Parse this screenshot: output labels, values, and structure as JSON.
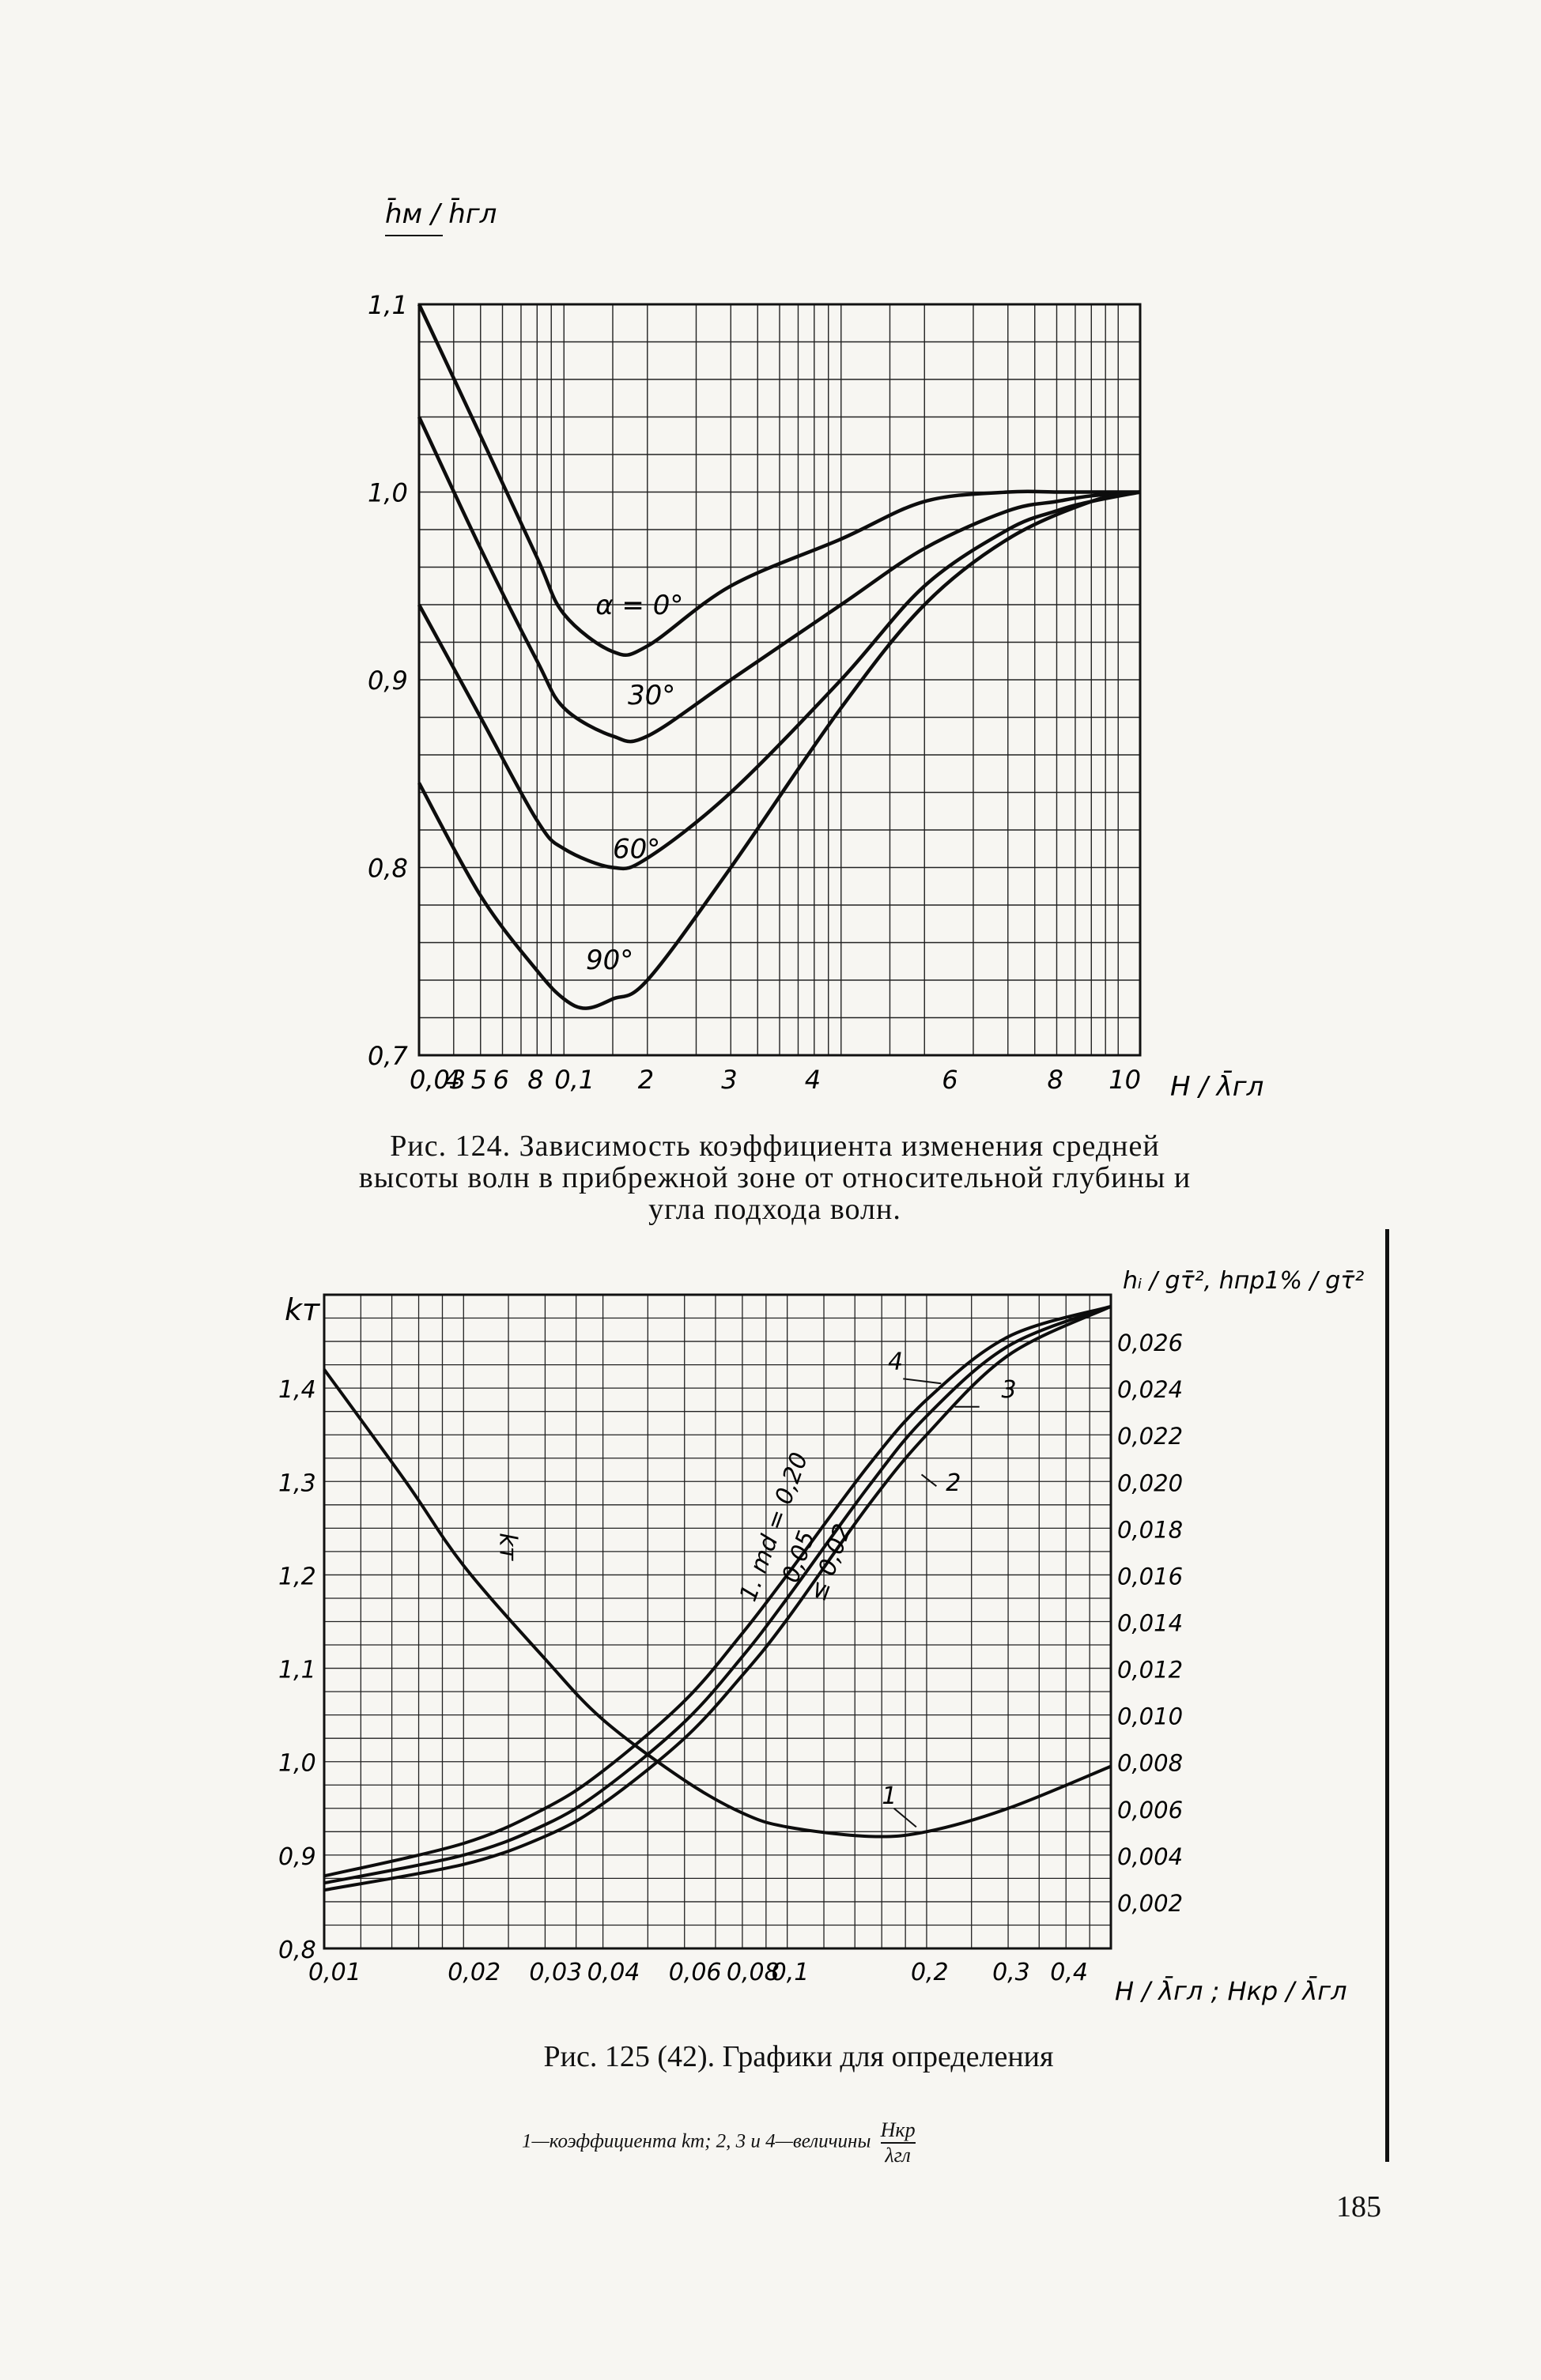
{
  "figure_124": {
    "caption": "Рис. 124. Зависимость коэффициента изменения средней высоты волн в прибрежной зоне от относительной глубины и угла подхода волн.",
    "y_label": "h̄м / h̄гл",
    "x_label": "H / λ̄гл",
    "x_tick_labels": [
      "0,03",
      "4",
      "5",
      "6",
      "8",
      "0,1",
      "2",
      "3",
      "4",
      "6",
      "8",
      "10"
    ],
    "y_tick_labels": [
      "0,7",
      "0,8",
      "0,9",
      "1,0",
      "1,1"
    ],
    "curve_labels": [
      "α = 0°",
      "30°",
      "60°",
      "90°"
    ]
  },
  "figure_125": {
    "caption": "Рис. 125 (42). Графики для определения",
    "caption_fraction_numerator": "Hкр",
    "caption_fraction_denominator": "λгл",
    "caption_sub": "1—коэффициента kт;  2, 3 и 4—величины",
    "left_axis_label": "kт",
    "left_tick_labels": [
      "0,8",
      "0,9",
      "1,0",
      "1,1",
      "1,2",
      "1,3",
      "1,4"
    ],
    "right_axis_label": "hᵢ / gτ̄²,  hпр1% / gτ̄²",
    "right_tick_labels": [
      "0,002",
      "0,004",
      "0,006",
      "0,008",
      "0,010",
      "0,012",
      "0,014",
      "0,016",
      "0,018",
      "0,020",
      "0,022",
      "0,024",
      "0,026"
    ],
    "x_axis_label": "H / λ̄гл ;  Hкр / λ̄гл",
    "x_tick_labels": [
      "0,01",
      "0,02",
      "0,03",
      "0,04",
      "0,06",
      "0,08",
      "0,1",
      "0,2",
      "0,3",
      "0,4"
    ],
    "curve_labels": [
      "1",
      "2",
      "3",
      "4",
      "kт",
      "1. md = 0,20",
      "0,05",
      "≤ 0,02"
    ]
  },
  "page_number": "185",
  "chart_data": [
    {
      "type": "line",
      "title": "",
      "xlabel": "H/λ̄гл",
      "ylabel": "h̄м/h̄гл",
      "x_scale": "log",
      "xlim": [
        0.03,
        12
      ],
      "ylim": [
        0.7,
        1.1
      ],
      "grid": true,
      "series": [
        {
          "name": "α = 0°",
          "x": [
            0.03,
            0.05,
            0.08,
            0.1,
            0.15,
            0.2,
            0.4,
            1,
            2,
            4,
            6,
            8,
            12
          ],
          "y": [
            1.1,
            1.03,
            0.965,
            0.935,
            0.915,
            0.918,
            0.95,
            0.975,
            0.995,
            1.0,
            1.0,
            1.0,
            1.0
          ]
        },
        {
          "name": "30°",
          "x": [
            0.03,
            0.05,
            0.08,
            0.1,
            0.15,
            0.2,
            0.4,
            1,
            2,
            4,
            6,
            8,
            12
          ],
          "y": [
            1.04,
            0.97,
            0.91,
            0.885,
            0.87,
            0.87,
            0.9,
            0.94,
            0.97,
            0.99,
            0.995,
            0.998,
            1.0
          ]
        },
        {
          "name": "60°",
          "x": [
            0.03,
            0.05,
            0.08,
            0.1,
            0.15,
            0.2,
            0.4,
            1,
            2,
            4,
            6,
            8,
            12
          ],
          "y": [
            0.94,
            0.88,
            0.825,
            0.81,
            0.8,
            0.805,
            0.84,
            0.9,
            0.95,
            0.98,
            0.99,
            0.995,
            1.0
          ]
        },
        {
          "name": "90°",
          "x": [
            0.03,
            0.05,
            0.08,
            0.1,
            0.12,
            0.15,
            0.2,
            0.4,
            1,
            2,
            4,
            8,
            12
          ],
          "y": [
            0.845,
            0.785,
            0.745,
            0.73,
            0.725,
            0.73,
            0.74,
            0.8,
            0.885,
            0.94,
            0.975,
            0.995,
            1.0
          ]
        }
      ]
    },
    {
      "type": "line",
      "title": "",
      "xlabel": "H/λ̄гл ; Hкр/λ̄гл",
      "ylabel_left": "kт",
      "ylabel_right": "hᵢ/gτ̄², hпр1%/gτ̄²",
      "x_scale": "log",
      "xlim": [
        0.01,
        0.5
      ],
      "ylim_left": [
        0.8,
        1.5
      ],
      "ylim_right": [
        0.0,
        0.028
      ],
      "grid": true,
      "series": [
        {
          "name": "1",
          "axis": "left",
          "x": [
            0.01,
            0.015,
            0.02,
            0.03,
            0.04,
            0.06,
            0.08,
            0.1,
            0.15,
            0.2,
            0.3,
            0.5
          ],
          "y": [
            1.42,
            1.3,
            1.21,
            1.11,
            1.045,
            0.98,
            0.945,
            0.93,
            0.92,
            0.925,
            0.95,
            0.995
          ]
        },
        {
          "name": "4",
          "axis": "right",
          "x": [
            0.01,
            0.02,
            0.03,
            0.04,
            0.06,
            0.08,
            0.1,
            0.15,
            0.2,
            0.3,
            0.5
          ],
          "y": [
            0.0031,
            0.0045,
            0.006,
            0.0076,
            0.0106,
            0.0135,
            0.016,
            0.0207,
            0.0235,
            0.0262,
            0.0275
          ]
        },
        {
          "name": "3",
          "axis": "right",
          "x": [
            0.01,
            0.02,
            0.03,
            0.04,
            0.06,
            0.08,
            0.1,
            0.15,
            0.2,
            0.3,
            0.5
          ],
          "y": [
            0.0028,
            0.004,
            0.0053,
            0.0068,
            0.0097,
            0.0125,
            0.015,
            0.0198,
            0.0228,
            0.0258,
            0.0275
          ]
        },
        {
          "name": "2",
          "axis": "right",
          "x": [
            0.01,
            0.02,
            0.03,
            0.04,
            0.06,
            0.08,
            0.1,
            0.15,
            0.2,
            0.3,
            0.5
          ],
          "y": [
            0.0025,
            0.0036,
            0.0048,
            0.0062,
            0.009,
            0.0117,
            0.0141,
            0.019,
            0.022,
            0.0254,
            0.0275
          ]
        }
      ]
    }
  ]
}
